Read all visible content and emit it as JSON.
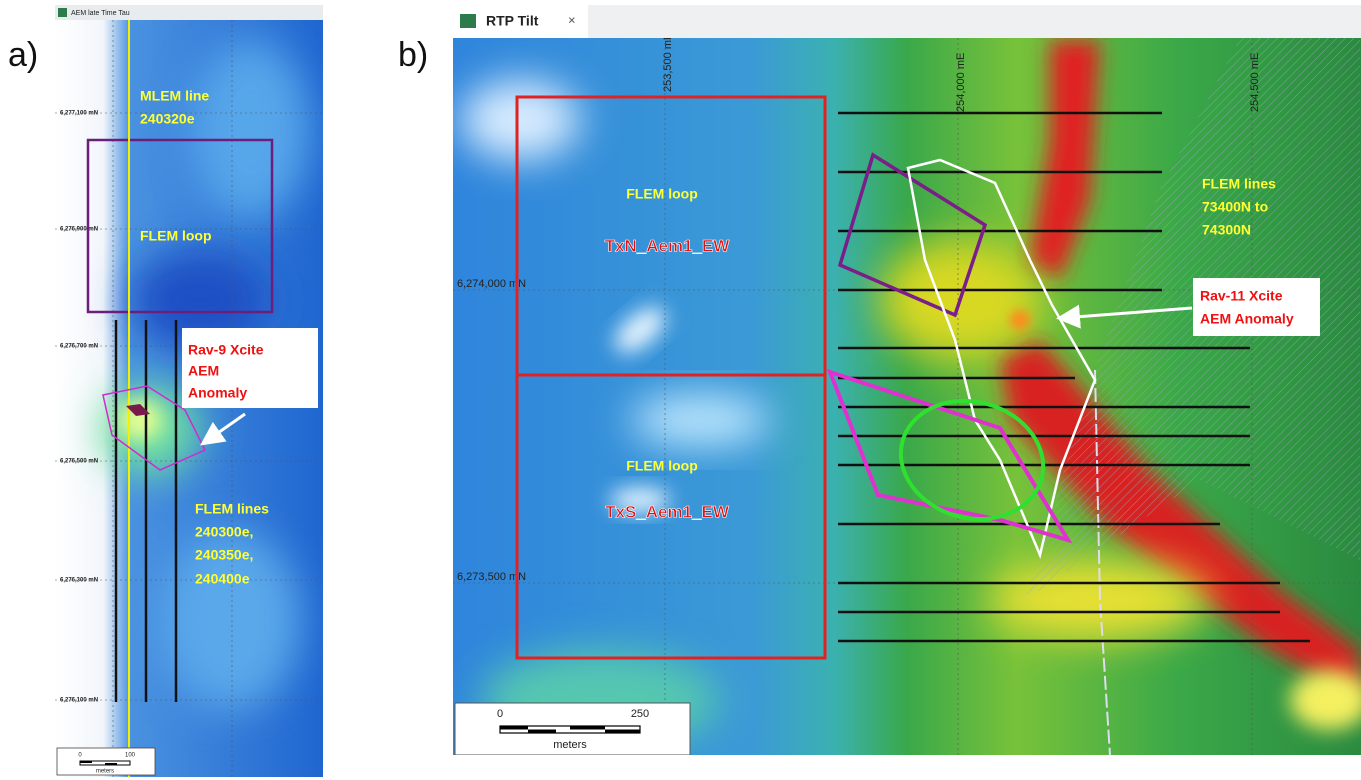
{
  "panel_a": {
    "label": "a)",
    "tab_title": "AEM late Time Tau",
    "northing_labels": [
      "6,277,100 mN",
      "6,276,900 mN",
      "6,276,700 mN",
      "6,276,500 mN",
      "6,276,300 mN",
      "6,276,100 mN"
    ],
    "annotations": {
      "mlem_line": [
        "MLEM line",
        "240320e"
      ],
      "flem_loop": [
        "FLEM loop"
      ],
      "anomaly": [
        "Rav-9 Xcite",
        "AEM",
        "Anomaly"
      ],
      "flem_lines": [
        "FLEM lines",
        "240300e,",
        "240350e,",
        "240400e"
      ]
    },
    "scale_bar": {
      "start": "0",
      "end": "100",
      "unit": "meters"
    }
  },
  "panel_b": {
    "label": "b)",
    "tab_title": "RTP Tilt",
    "easting_labels": [
      "253,500 mE",
      "254,000 mE",
      "254,500 mE"
    ],
    "northing_labels": [
      "6,274,000 mN",
      "6,273,500 mN"
    ],
    "annotations": {
      "loop_north": [
        "FLEM loop",
        "TxN_Aem1_EW"
      ],
      "loop_south": [
        "FLEM loop",
        "TxS_Aem1_EW"
      ],
      "flem_lines": [
        "FLEM lines",
        "73400N to",
        "74300N"
      ],
      "anomaly": [
        "Rav-11 Xcite",
        "AEM Anomaly"
      ]
    },
    "scale_bar": {
      "start": "0",
      "end": "250",
      "unit": "meters"
    }
  }
}
